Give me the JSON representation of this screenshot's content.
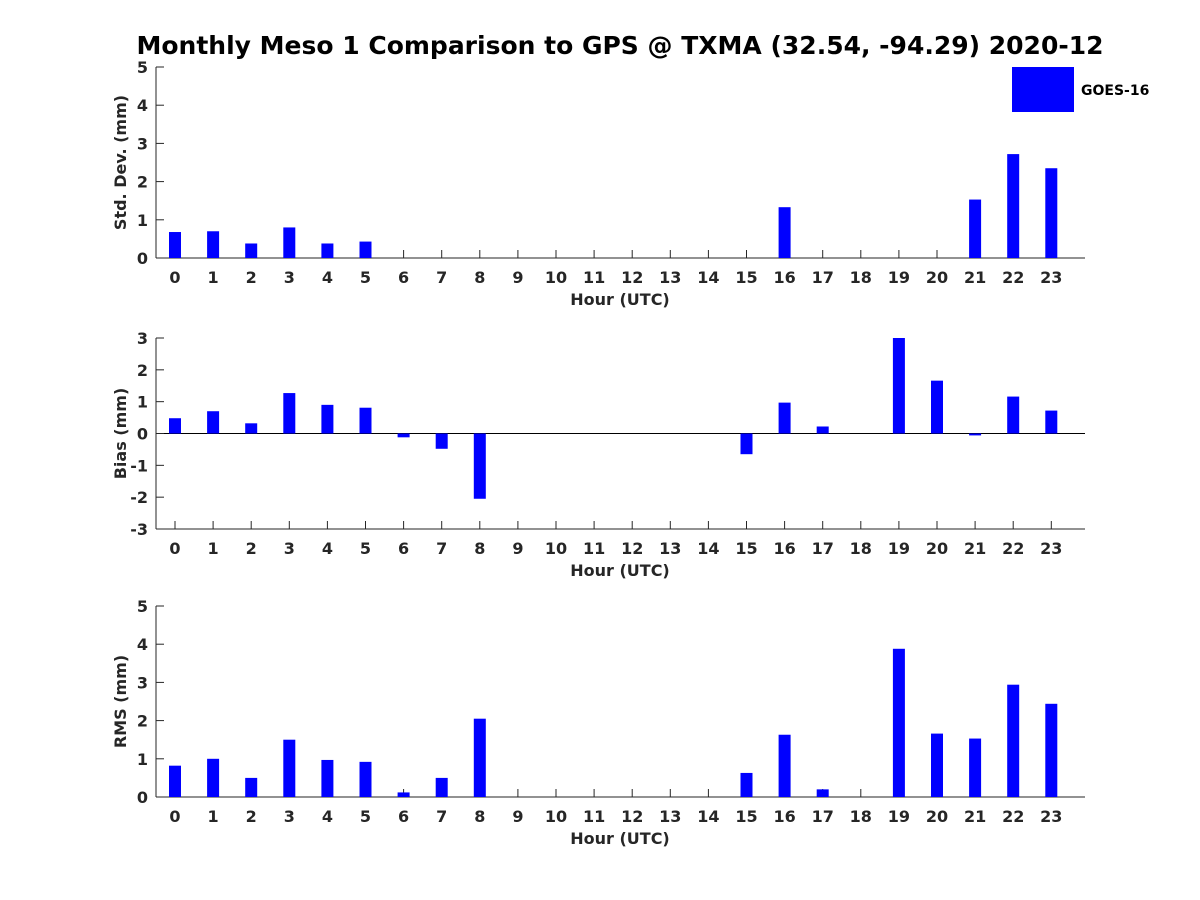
{
  "title": "Monthly Meso 1 Comparison to GPS @ TXMA (32.54, -94.29) 2020-12",
  "legend": {
    "label": "GOES-16",
    "color": "#0000ff"
  },
  "colors": {
    "bar": "#0000ff",
    "axis": "#262626"
  },
  "chart_data": [
    {
      "type": "bar",
      "title": "Monthly Meso 1 Comparison to GPS @ TXMA (32.54, -94.29) 2020-12",
      "xlabel": "Hour (UTC)",
      "ylabel": "Std. Dev. (mm)",
      "categories": [
        "0",
        "1",
        "2",
        "3",
        "4",
        "5",
        "6",
        "7",
        "8",
        "9",
        "10",
        "11",
        "12",
        "13",
        "14",
        "15",
        "16",
        "17",
        "18",
        "19",
        "20",
        "21",
        "22",
        "23"
      ],
      "series": [
        {
          "name": "GOES-16",
          "values": [
            0.68,
            0.7,
            0.38,
            0.8,
            0.38,
            0.43,
            0,
            0,
            0,
            0,
            0,
            0,
            0,
            0,
            0,
            0,
            1.33,
            0,
            0,
            0,
            0,
            1.53,
            2.72,
            2.35
          ]
        }
      ],
      "ylim": [
        0,
        5
      ],
      "yticks": [
        0,
        1,
        2,
        3,
        4,
        5
      ],
      "grid": false,
      "legend_position": "top-right"
    },
    {
      "type": "bar",
      "xlabel": "Hour (UTC)",
      "ylabel": "Bias (mm)",
      "categories": [
        "0",
        "1",
        "2",
        "3",
        "4",
        "5",
        "6",
        "7",
        "8",
        "9",
        "10",
        "11",
        "12",
        "13",
        "14",
        "15",
        "16",
        "17",
        "18",
        "19",
        "20",
        "21",
        "22",
        "23"
      ],
      "series": [
        {
          "name": "GOES-16",
          "values": [
            0.48,
            0.7,
            0.32,
            1.27,
            0.9,
            0.81,
            -0.12,
            -0.48,
            -2.05,
            0,
            0,
            0,
            0,
            0,
            0,
            -0.65,
            0.97,
            0.22,
            0,
            3.0,
            1.66,
            -0.06,
            1.16,
            0.72
          ]
        }
      ],
      "ylim": [
        -3,
        3
      ],
      "yticks": [
        -3,
        -2,
        -1,
        0,
        1,
        2,
        3
      ],
      "grid": false
    },
    {
      "type": "bar",
      "xlabel": "Hour (UTC)",
      "ylabel": "RMS (mm)",
      "categories": [
        "0",
        "1",
        "2",
        "3",
        "4",
        "5",
        "6",
        "7",
        "8",
        "9",
        "10",
        "11",
        "12",
        "13",
        "14",
        "15",
        "16",
        "17",
        "18",
        "19",
        "20",
        "21",
        "22",
        "23"
      ],
      "series": [
        {
          "name": "GOES-16",
          "values": [
            0.82,
            1.0,
            0.5,
            1.5,
            0.97,
            0.92,
            0.12,
            0.5,
            2.05,
            0,
            0,
            0,
            0,
            0,
            0,
            0.63,
            1.63,
            0.2,
            0,
            3.88,
            1.66,
            1.53,
            2.94,
            2.44
          ]
        }
      ],
      "ylim": [
        0,
        5
      ],
      "yticks": [
        0,
        1,
        2,
        3,
        4,
        5
      ],
      "grid": false
    }
  ]
}
